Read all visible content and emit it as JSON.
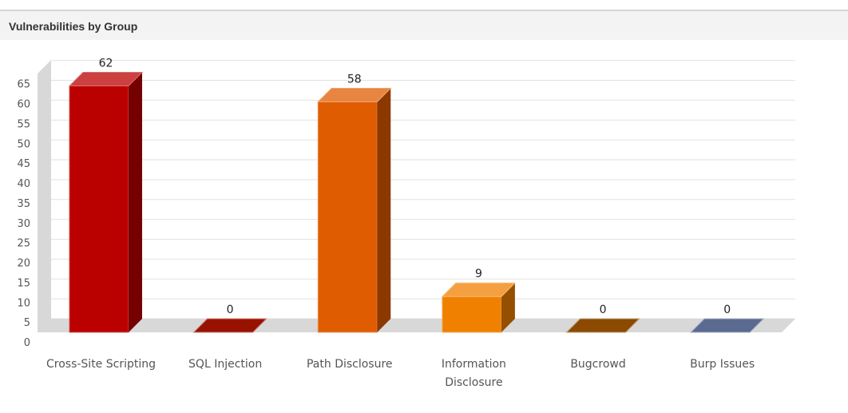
{
  "panel": {
    "title": "Vulnerabilities by Group"
  },
  "chart_data": {
    "type": "bar",
    "title": "",
    "xlabel": "",
    "ylabel": "",
    "ylim": [
      0,
      65
    ],
    "yticks": [
      0,
      5,
      10,
      15,
      20,
      25,
      30,
      35,
      40,
      45,
      50,
      55,
      60,
      65
    ],
    "grid": true,
    "three_d": true,
    "categories": [
      [
        "Cross-Site Scripting"
      ],
      [
        "SQL Injection"
      ],
      [
        "Path Disclosure"
      ],
      [
        "Information",
        "Disclosure"
      ],
      [
        "Bugcrowd"
      ],
      [
        "Burp Issues"
      ]
    ],
    "values": [
      62,
      0,
      58,
      9,
      0,
      0
    ],
    "colors": [
      "#bb0000",
      "#991100",
      "#e05c00",
      "#f08000",
      "#8b4a00",
      "#5a6a90"
    ]
  }
}
